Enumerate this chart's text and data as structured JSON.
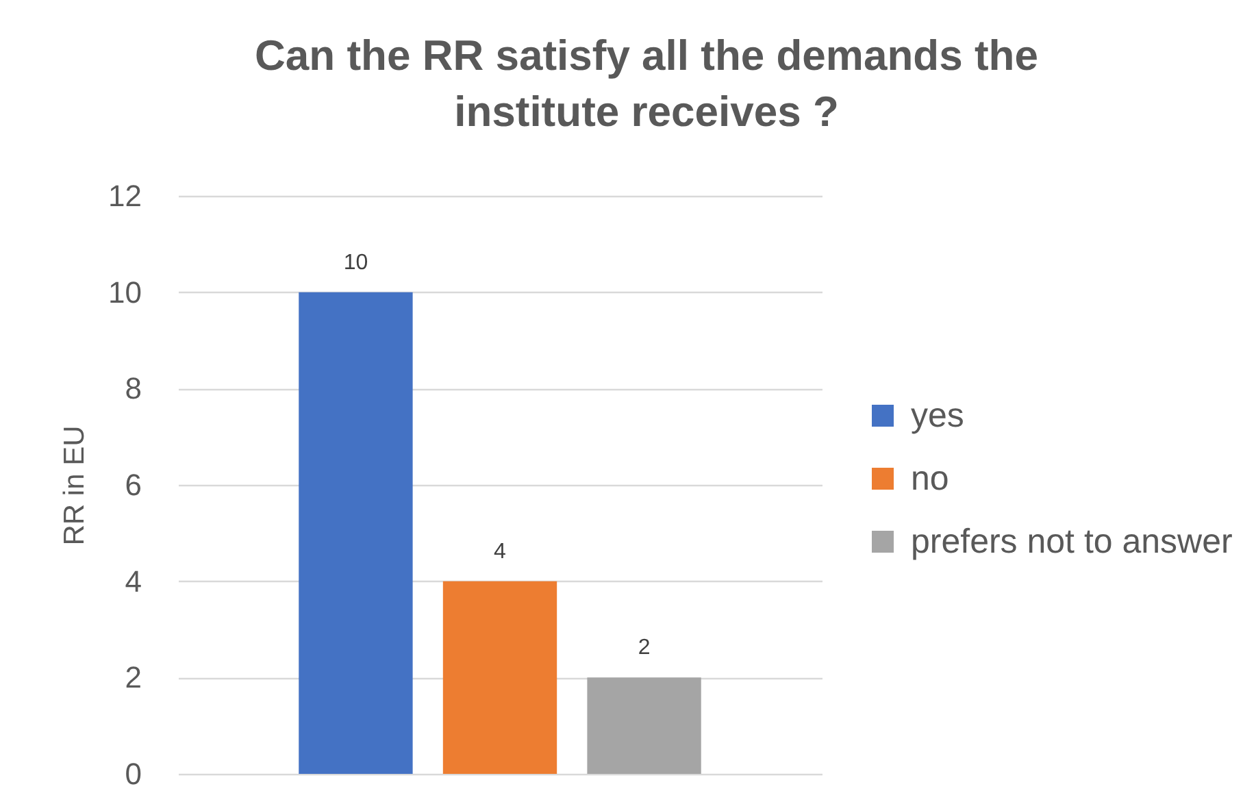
{
  "chart_data": {
    "type": "bar",
    "title": "Can the RR satisfy all the demands the institute receives ?",
    "ylabel": "RR in EU",
    "categories": [
      null
    ],
    "series": [
      {
        "name": "yes",
        "color": "#4472c4",
        "values": [
          10
        ]
      },
      {
        "name": "no",
        "color": "#ed7d31",
        "values": [
          4
        ]
      },
      {
        "name": "prefers not to answer",
        "color": "#a5a5a5",
        "values": [
          2
        ]
      }
    ],
    "ylim": [
      0,
      12
    ],
    "yticks": [
      0,
      2,
      4,
      6,
      8,
      10,
      12
    ],
    "grid": "y",
    "legend": "right",
    "data_labels": true
  }
}
